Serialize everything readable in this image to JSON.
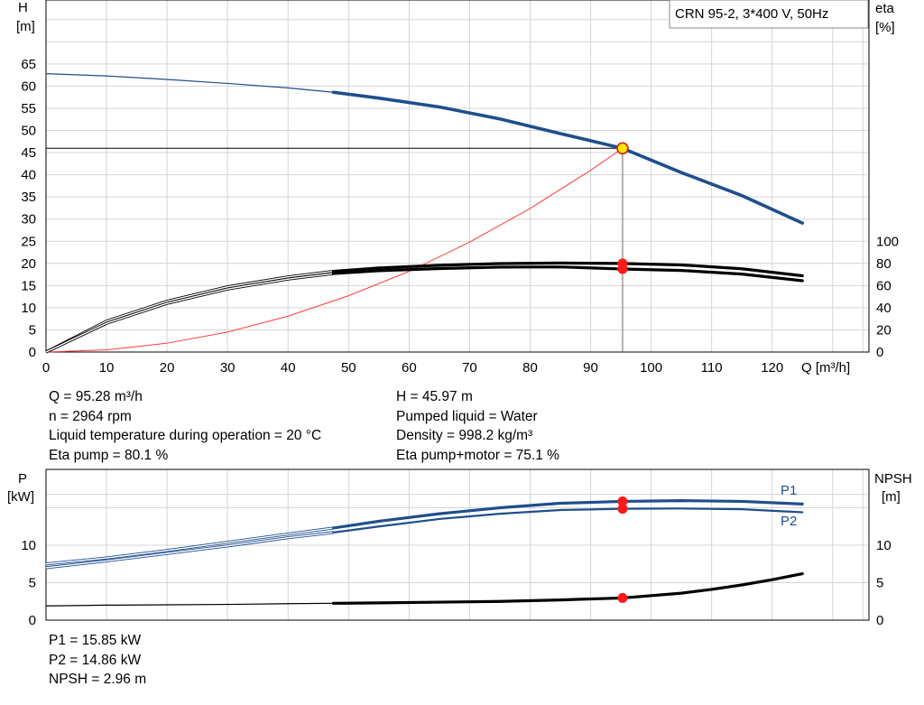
{
  "chart_data": [
    {
      "type": "line",
      "title": "CRN 95-2, 3*400 V, 50Hz",
      "xlabel": "Q [m³/h]",
      "ylabel_left": [
        "H",
        "[m]"
      ],
      "ylabel_right": [
        "eta",
        "[%]"
      ],
      "xlim": [
        0,
        136
      ],
      "ylim_left": [
        0,
        80
      ],
      "ylim_right": [
        0,
        100
      ],
      "x_ticks": [
        0,
        10,
        20,
        30,
        40,
        50,
        60,
        70,
        80,
        90,
        100,
        110,
        120
      ],
      "y_ticks_left": [
        0,
        5,
        10,
        15,
        20,
        25,
        30,
        35,
        40,
        45,
        50,
        55,
        60,
        65
      ],
      "y_ticks_right": [
        0,
        20,
        40,
        60,
        80,
        100
      ],
      "grid": true,
      "operating_point": {
        "q": 95.28,
        "h": 45.97,
        "eta_pump": 80.1,
        "eta_pump_motor": 75.1
      },
      "series": [
        {
          "axis": "left",
          "color": "#1f4e8c",
          "x": [
            0,
            10,
            20,
            30,
            40,
            47.5,
            55,
            65,
            75,
            85,
            95.28,
            105,
            115,
            125
          ],
          "y": [
            62.8,
            62.3,
            61.5,
            60.6,
            59.6,
            58.6,
            57.3,
            55.3,
            52.6,
            49.3,
            45.97,
            40.5,
            35.3,
            29.1
          ]
        },
        {
          "axis": "right",
          "color": "#000000",
          "x": [
            0,
            10,
            20,
            30,
            40,
            47.5,
            55,
            65,
            75,
            85,
            95.28,
            105,
            115,
            125
          ],
          "y": [
            0,
            28,
            46,
            59,
            68,
            73,
            76,
            78.5,
            80,
            80.5,
            80.1,
            78.8,
            75.3,
            69
          ]
        },
        {
          "axis": "right",
          "color": "#000000",
          "x": [
            0,
            10,
            20,
            30,
            40,
            47.5,
            55,
            65,
            75,
            85,
            95.28,
            105,
            115,
            125
          ],
          "y": [
            0,
            26,
            44,
            57,
            66,
            71,
            73.5,
            75.5,
            76.8,
            77,
            75.1,
            73.8,
            70.5,
            64.5
          ]
        },
        {
          "axis": "left",
          "color": "#ff3b3b",
          "x": [
            0,
            10,
            20,
            30,
            40,
            50,
            60,
            70,
            80,
            90,
            95.28
          ],
          "y": [
            0,
            0.5,
            2,
            4.5,
            8.1,
            12.7,
            18.2,
            24.8,
            32.4,
            41,
            45.97
          ]
        }
      ]
    },
    {
      "type": "line",
      "xlim": [
        0,
        136
      ],
      "ylabel_left": [
        "P",
        "[kW]"
      ],
      "ylabel_right": [
        "NPSH",
        "[m]"
      ],
      "ylim_left": [
        0,
        17.5
      ],
      "ylim_right": [
        0,
        17.5
      ],
      "y_ticks_left": [
        0,
        5,
        10
      ],
      "y_ticks_right": [
        0,
        5,
        10
      ],
      "grid": true,
      "series": [
        {
          "name": "P1",
          "axis": "left",
          "color": "#1f4e8c",
          "x": [
            0,
            10,
            20,
            30,
            40,
            47.5,
            55,
            65,
            75,
            85,
            95.28,
            105,
            115,
            125
          ],
          "y": [
            7.5,
            8.3,
            9.3,
            10.4,
            11.5,
            12.3,
            13.2,
            14.2,
            15.0,
            15.6,
            15.85,
            15.95,
            15.85,
            15.5
          ]
        },
        {
          "name": "P2",
          "axis": "left",
          "color": "#1f4e8c",
          "x": [
            0,
            10,
            20,
            30,
            40,
            47.5,
            55,
            65,
            75,
            85,
            95.28,
            105,
            115,
            125
          ],
          "y": [
            7.0,
            7.9,
            8.9,
            9.9,
            11.0,
            11.7,
            12.5,
            13.5,
            14.2,
            14.7,
            14.86,
            14.9,
            14.8,
            14.4
          ]
        },
        {
          "name": "NPSH",
          "axis": "right",
          "color": "#000000",
          "x": [
            0,
            10,
            20,
            30,
            40,
            47.5,
            55,
            65,
            75,
            85,
            95.28,
            105,
            110,
            115,
            120,
            125
          ],
          "y": [
            1.9,
            2.0,
            2.05,
            2.1,
            2.2,
            2.25,
            2.3,
            2.4,
            2.5,
            2.7,
            2.96,
            3.6,
            4.1,
            4.7,
            5.4,
            6.2
          ]
        }
      ]
    }
  ],
  "info_top_left": [
    "Q = 95.28 m³/h",
    "n = 2964 rpm",
    "Liquid temperature during operation = 20 °C",
    "Eta pump = 80.1 %"
  ],
  "info_top_right": [
    "H = 45.97 m",
    "Pumped liquid = Water",
    "Density = 998.2 kg/m³",
    "Eta pump+motor = 75.1 %"
  ],
  "info_bottom": [
    "P1 = 15.85 kW",
    "P2 = 14.86 kW",
    "NPSH = 2.96 m"
  ]
}
